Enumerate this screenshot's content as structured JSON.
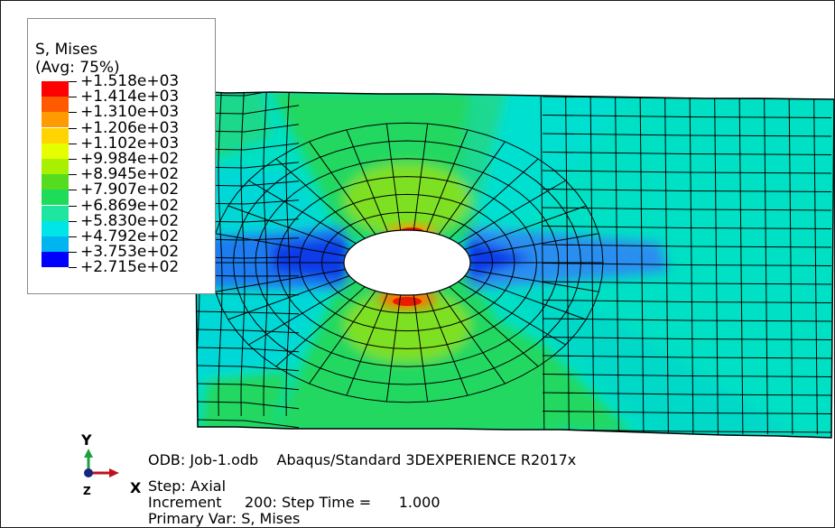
{
  "legend": {
    "title": "S, Mises",
    "subtitle": "(Avg: 75%)",
    "levels": [
      {
        "label": "+1.518e+03",
        "color": "#ff0000"
      },
      {
        "label": "+1.414e+03",
        "color": "#ff5a00"
      },
      {
        "label": "+1.310e+03",
        "color": "#ff9a00"
      },
      {
        "label": "+1.206e+03",
        "color": "#ffd400"
      },
      {
        "label": "+1.102e+03",
        "color": "#e6ff00"
      },
      {
        "label": "+9.984e+02",
        "color": "#a8f000"
      },
      {
        "label": "+8.945e+02",
        "color": "#56dc1e"
      },
      {
        "label": "+7.907e+02",
        "color": "#1edc5a"
      },
      {
        "label": "+6.869e+02",
        "color": "#1ee6a0"
      },
      {
        "label": "+5.830e+02",
        "color": "#00e6e6"
      },
      {
        "label": "+4.792e+02",
        "color": "#00b4f0"
      },
      {
        "label": "+3.753e+02",
        "color": "#1e6ef0"
      },
      {
        "label": "+2.715e+02",
        "color": "#0000ff"
      }
    ]
  },
  "triad": {
    "y_label": "Y",
    "x_label": "X",
    "z_label": "Z"
  },
  "info": {
    "odb": "ODB: Job-1.odb    Abaqus/Standard 3DEXPERIENCE R2017x",
    "step": "Step: Axial",
    "increment": "Increment     200: Step Time =      1.000",
    "primary_var": "Primary Var: S, Mises"
  },
  "colors": {
    "background": "#00e0c8",
    "hole": "#ffffff",
    "mesh": "#000000"
  }
}
